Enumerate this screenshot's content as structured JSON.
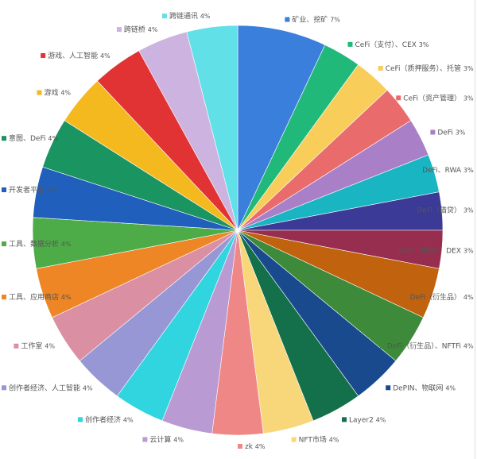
{
  "chart_data": {
    "type": "pie",
    "title": "",
    "start": "top",
    "direction": "clockwise",
    "slices": [
      {
        "label": "矿业、挖矿",
        "value": 7,
        "text": "7%",
        "color": "#3a7fdc"
      },
      {
        "label": "CeFi（支付）、CEX",
        "value": 3,
        "text": "3%",
        "color": "#20b97a"
      },
      {
        "label": "CeFi（质押服务）、托管",
        "value": 3,
        "text": "3%",
        "color": "#f8cd5a"
      },
      {
        "label": "CeFi（资产管理）",
        "value": 3,
        "text": "3%",
        "color": "#ea6b6b"
      },
      {
        "label": "DeFi",
        "value": 3,
        "text": "3%",
        "color": "#a97fc8"
      },
      {
        "label": "DeFi、RWA",
        "value": 3,
        "text": "3%",
        "color": "#1ab5c3"
      },
      {
        "label": "DeFi（借贷）",
        "value": 3,
        "text": "3%",
        "color": "#3b3a96"
      },
      {
        "label": "DeFi（借贷）、DEX",
        "value": 3,
        "text": "3%",
        "color": "#982e4f"
      },
      {
        "label": "DeFi（衍生品）",
        "value": 4,
        "text": "4%",
        "color": "#c0620e"
      },
      {
        "label": "DeFi（衍生品）、NFTFi",
        "value": 4,
        "text": "4%",
        "color": "#3c8a3a"
      },
      {
        "label": "DePIN、物联网",
        "value": 4,
        "text": "4%",
        "color": "#1a4a8e"
      },
      {
        "label": "Layer2",
        "value": 4,
        "text": "4%",
        "color": "#13704a"
      },
      {
        "label": "NFT市场",
        "value": 4,
        "text": "4%",
        "color": "#f8d67a"
      },
      {
        "label": "zk",
        "value": 4,
        "text": "4%",
        "color": "#ef8787"
      },
      {
        "label": "云计算",
        "value": 4,
        "text": "4%",
        "color": "#ba9ad3"
      },
      {
        "label": "创作者经济",
        "value": 4,
        "text": "4%",
        "color": "#30d5e0"
      },
      {
        "label": "创作者经济、人工智能",
        "value": 4,
        "text": "4%",
        "color": "#9797d6"
      },
      {
        "label": "工作室",
        "value": 4,
        "text": "4%",
        "color": "#db8fa3"
      },
      {
        "label": "工具、应用商店",
        "value": 4,
        "text": "4%",
        "color": "#ee8626"
      },
      {
        "label": "工具、数据分析",
        "value": 4,
        "text": "4%",
        "color": "#4eac48"
      },
      {
        "label": "开发者平台",
        "value": 4,
        "text": "4%",
        "color": "#2060bc"
      },
      {
        "label": "意图、DeFi",
        "value": 4,
        "text": "4%",
        "color": "#1a9460"
      },
      {
        "label": "游戏",
        "value": 4,
        "text": "4%",
        "color": "#f5b920"
      },
      {
        "label": "游戏、人工智能",
        "value": 4,
        "text": "4%",
        "color": "#e13333"
      },
      {
        "label": "跨链桥",
        "value": 4,
        "text": "4%",
        "color": "#cdb3df"
      },
      {
        "label": "跨链通讯",
        "value": 4,
        "text": "4%",
        "color": "#62e0e8"
      }
    ]
  }
}
